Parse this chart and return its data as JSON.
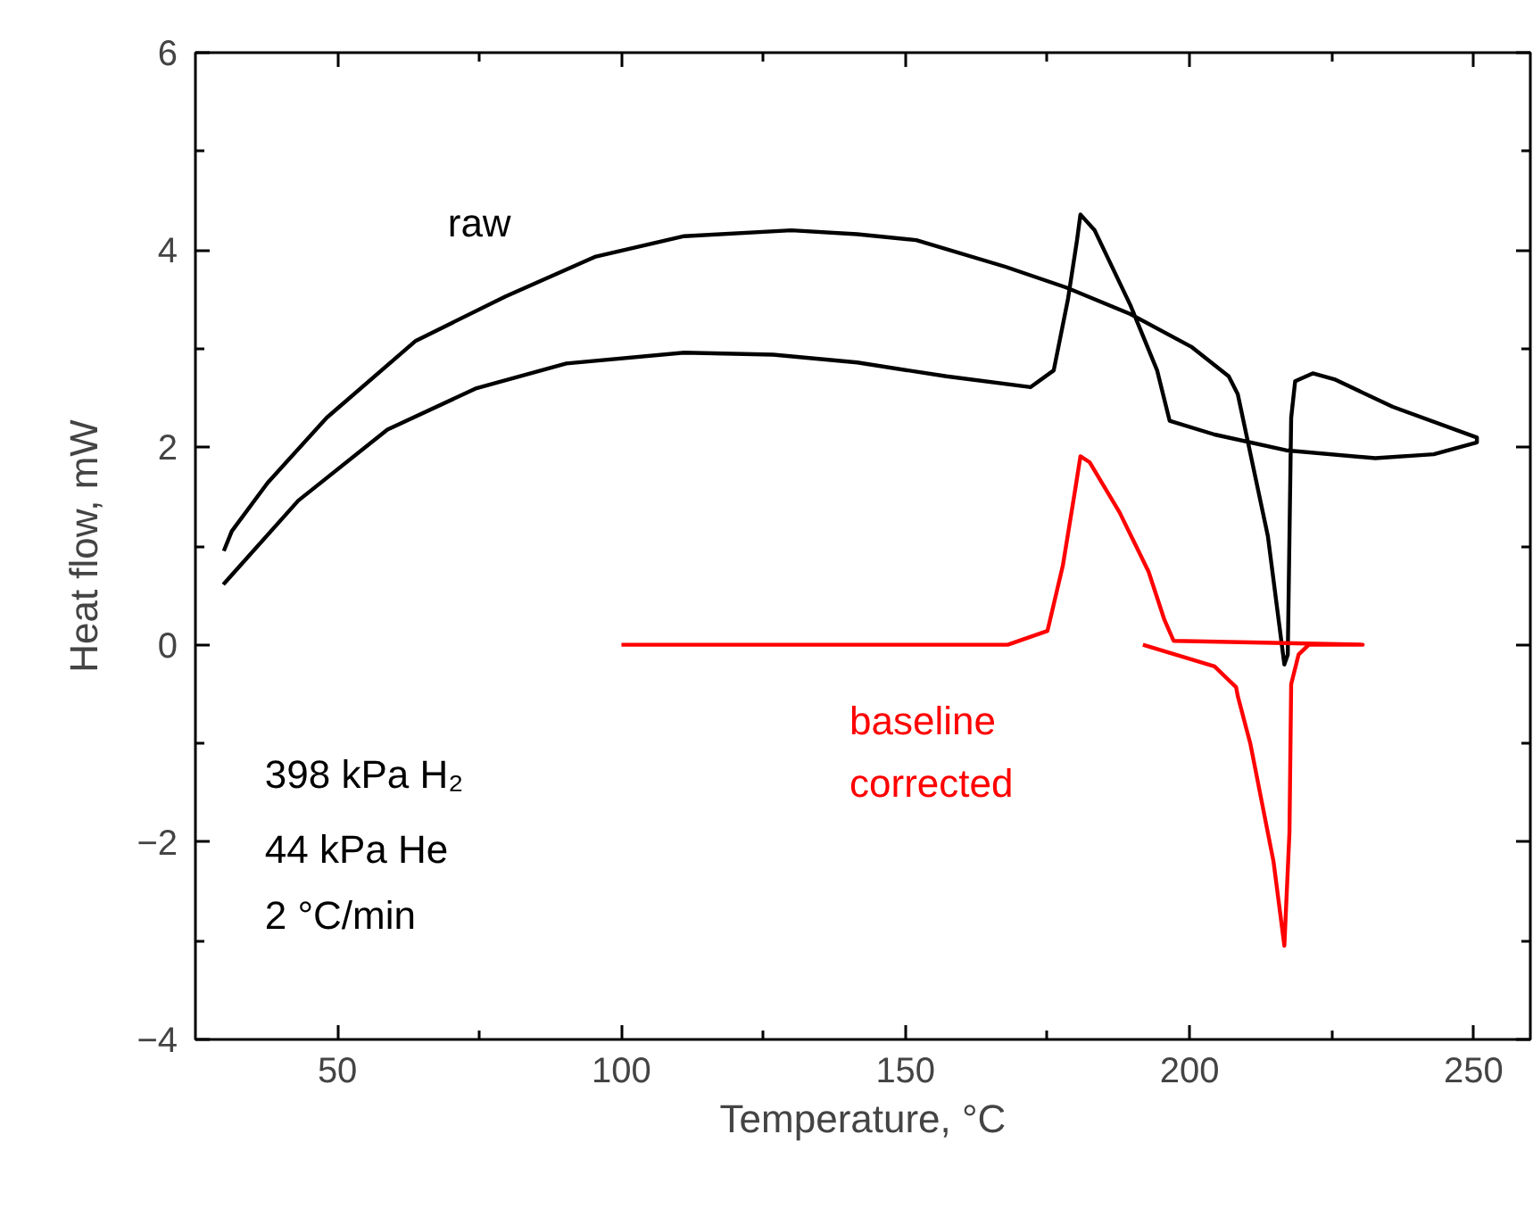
{
  "chart_data": {
    "type": "line",
    "xlabel": "Temperature, °C",
    "ylabel": "Heat flow, mW",
    "xlim": [
      25,
      260
    ],
    "ylim": [
      -4,
      6
    ],
    "xticks": [
      50,
      {
        "value": 75,
        "label": null
      },
      100,
      {
        "value": 125,
        "label": null
      },
      150,
      {
        "value": 175,
        "label": null
      },
      200,
      {
        "value": 225,
        "label": null
      },
      250
    ],
    "yticks": [
      -4,
      {
        "value": -3,
        "label": null
      },
      -2,
      {
        "value": -1,
        "label": null
      },
      0,
      {
        "value": 1,
        "label": null
      },
      2,
      {
        "value": 3,
        "label": null
      },
      4,
      {
        "value": 5,
        "label": null
      },
      6
    ],
    "grid": false,
    "legend": false,
    "marker": "none",
    "line_style": "solid",
    "series": [
      {
        "name": "raw",
        "color": "#000000",
        "x": [
          29.9,
          43.1,
          58.8,
          74.5,
          90.3,
          111,
          126.7,
          141.5,
          157.2,
          172,
          176.1,
          178.6,
          180.2,
          180.8,
          183.3,
          189.6,
          194.3,
          196.5,
          204.4,
          217,
          232.7,
          243,
          250.6,
          250.6,
          235.8,
          225.5,
          221.7,
          218.6,
          217.9,
          217.3,
          216.7,
          213.8,
          208.5,
          206.9,
          200.3,
          189.6,
          178.3,
          167.6,
          151.9,
          141.5,
          129.9,
          111,
          95.3,
          79.6,
          63.8,
          48.1,
          37.7,
          31.4,
          30
        ],
        "values": [
          0.61,
          1.46,
          2.18,
          2.6,
          2.85,
          2.96,
          2.94,
          2.86,
          2.72,
          2.61,
          2.78,
          3.5,
          4.1,
          4.36,
          4.2,
          3.44,
          2.78,
          2.27,
          2.13,
          1.97,
          1.89,
          1.93,
          2.05,
          2.1,
          2.41,
          2.69,
          2.75,
          2.67,
          2.3,
          -0.1,
          -0.2,
          1.1,
          2.54,
          2.72,
          3.02,
          3.35,
          3.62,
          3.83,
          4.1,
          4.16,
          4.2,
          4.14,
          3.93,
          3.53,
          3.08,
          2.3,
          1.64,
          1.15,
          0.95
        ]
      },
      {
        "name": "baseline\ncorrected",
        "color": "#ff0000",
        "x": [
          100,
          168,
          175,
          177.7,
          179.9,
          180.8,
          182.4,
          187.7,
          192.8,
          195.6,
          197.2,
          230.5,
          221,
          219.2,
          217.9,
          217.6,
          216.7,
          214.8,
          210.7,
          208.5,
          208.2,
          204.4,
          191.8
        ],
        "values": [
          0,
          0,
          0.14,
          0.8,
          1.58,
          1.91,
          1.85,
          1.34,
          0.74,
          0.25,
          0.04,
          0,
          0,
          -0.1,
          -0.4,
          -1.9,
          -3.05,
          -2.2,
          -1.0,
          -0.52,
          -0.43,
          -0.22,
          0
        ]
      }
    ],
    "annotations": [
      "398 kPa H₂",
      "44 kPa He",
      "2 °C/min"
    ]
  }
}
